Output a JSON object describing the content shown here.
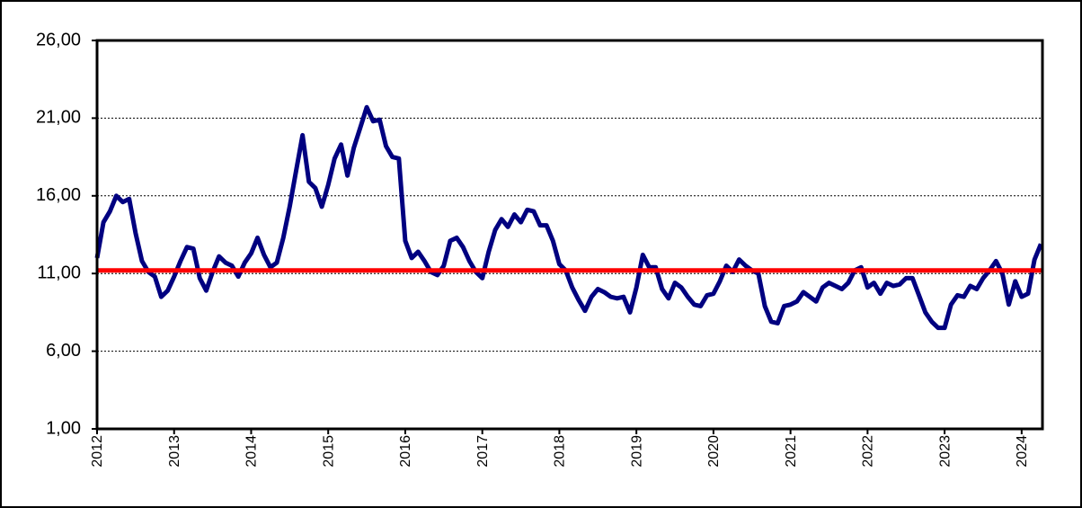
{
  "chart_data": {
    "type": "line",
    "x": [
      2012,
      2012.083,
      2012.167,
      2012.25,
      2012.333,
      2012.417,
      2012.5,
      2012.583,
      2012.667,
      2012.75,
      2012.833,
      2012.917,
      2013,
      2013.083,
      2013.167,
      2013.25,
      2013.333,
      2013.417,
      2013.5,
      2013.583,
      2013.667,
      2013.75,
      2013.833,
      2013.917,
      2014,
      2014.083,
      2014.167,
      2014.25,
      2014.333,
      2014.417,
      2014.5,
      2014.583,
      2014.667,
      2014.75,
      2014.833,
      2014.917,
      2015,
      2015.083,
      2015.167,
      2015.25,
      2015.333,
      2015.417,
      2015.5,
      2015.583,
      2015.667,
      2015.75,
      2015.833,
      2015.917,
      2016,
      2016.083,
      2016.167,
      2016.25,
      2016.333,
      2016.417,
      2016.5,
      2016.583,
      2016.667,
      2016.75,
      2016.833,
      2016.917,
      2017,
      2017.083,
      2017.167,
      2017.25,
      2017.333,
      2017.417,
      2017.5,
      2017.583,
      2017.667,
      2017.75,
      2017.833,
      2017.917,
      2018,
      2018.083,
      2018.167,
      2018.25,
      2018.333,
      2018.417,
      2018.5,
      2018.583,
      2018.667,
      2018.75,
      2018.833,
      2018.917,
      2019,
      2019.083,
      2019.167,
      2019.25,
      2019.333,
      2019.417,
      2019.5,
      2019.583,
      2019.667,
      2019.75,
      2019.833,
      2019.917,
      2020,
      2020.083,
      2020.167,
      2020.25,
      2020.333,
      2020.417,
      2020.5,
      2020.583,
      2020.667,
      2020.75,
      2020.833,
      2020.917,
      2021,
      2021.083,
      2021.167,
      2021.25,
      2021.333,
      2021.417,
      2021.5,
      2021.583,
      2021.667,
      2021.75,
      2021.833,
      2021.917,
      2022,
      2022.083,
      2022.167,
      2022.25,
      2022.333,
      2022.417,
      2022.5,
      2022.583,
      2022.667,
      2022.75,
      2022.833,
      2022.917,
      2023,
      2023.083,
      2023.167,
      2023.25,
      2023.333,
      2023.417,
      2023.5,
      2023.583,
      2023.667,
      2023.75,
      2023.833,
      2023.917,
      2024,
      2024.083,
      2024.167,
      2024.25
    ],
    "series": [
      {
        "color": "#000080",
        "values": [
          12.0,
          14.3,
          15.0,
          16.0,
          15.6,
          15.8,
          13.6,
          11.8,
          11.1,
          10.8,
          9.5,
          9.9,
          10.8,
          11.8,
          12.7,
          12.6,
          10.7,
          9.9,
          11.1,
          12.1,
          11.7,
          11.5,
          10.8,
          11.7,
          12.3,
          13.3,
          12.2,
          11.4,
          11.7,
          13.3,
          15.3,
          17.6,
          19.9,
          16.9,
          16.5,
          15.3,
          16.7,
          18.4,
          19.3,
          17.3,
          19.1,
          20.4,
          21.7,
          20.8,
          20.9,
          19.2,
          18.5,
          18.4,
          13.1,
          12.0,
          12.4,
          11.8,
          11.1,
          10.9,
          11.5,
          13.1,
          13.3,
          12.7,
          11.8,
          11.1,
          10.7,
          12.4,
          13.8,
          14.5,
          14.0,
          14.8,
          14.3,
          15.1,
          15.0,
          14.1,
          14.1,
          13.1,
          11.6,
          11.2,
          10.1,
          9.3,
          8.6,
          9.5,
          10.0,
          9.8,
          9.5,
          9.4,
          9.5,
          8.5,
          10.1,
          12.2,
          11.4,
          11.4,
          10.0,
          9.4,
          10.4,
          10.1,
          9.5,
          9.0,
          8.9,
          9.6,
          9.7,
          10.5,
          11.5,
          11.1,
          11.9,
          11.5,
          11.2,
          11.0,
          8.9,
          7.9,
          7.8,
          8.9,
          9.0,
          9.2,
          9.8,
          9.5,
          9.2,
          10.1,
          10.4,
          10.2,
          10.0,
          10.4,
          11.2,
          11.4,
          10.1,
          10.4,
          9.7,
          10.4,
          10.2,
          10.3,
          10.7,
          10.7,
          9.6,
          8.5,
          7.9,
          7.5,
          7.5,
          9.0,
          9.6,
          9.5,
          10.2,
          10.0,
          10.7,
          11.2,
          11.8,
          11.0,
          9.0,
          10.5,
          9.5,
          9.7,
          11.9,
          12.9
        ]
      }
    ],
    "reference_line": {
      "value": 11.2,
      "color": "#ff0000"
    },
    "xlim": [
      2012,
      2024.27
    ],
    "xticks": [
      2012,
      2013,
      2014,
      2015,
      2016,
      2017,
      2018,
      2019,
      2020,
      2021,
      2022,
      2023,
      2024
    ],
    "ylim": [
      1,
      26
    ],
    "yticks": [
      {
        "value": 1,
        "label": "1,00"
      },
      {
        "value": 6,
        "label": "6,00"
      },
      {
        "value": 11,
        "label": "11,00"
      },
      {
        "value": 16,
        "label": "16,00"
      },
      {
        "value": 21,
        "label": "21,00"
      },
      {
        "value": 26,
        "label": "26,00"
      }
    ],
    "grid": true
  }
}
